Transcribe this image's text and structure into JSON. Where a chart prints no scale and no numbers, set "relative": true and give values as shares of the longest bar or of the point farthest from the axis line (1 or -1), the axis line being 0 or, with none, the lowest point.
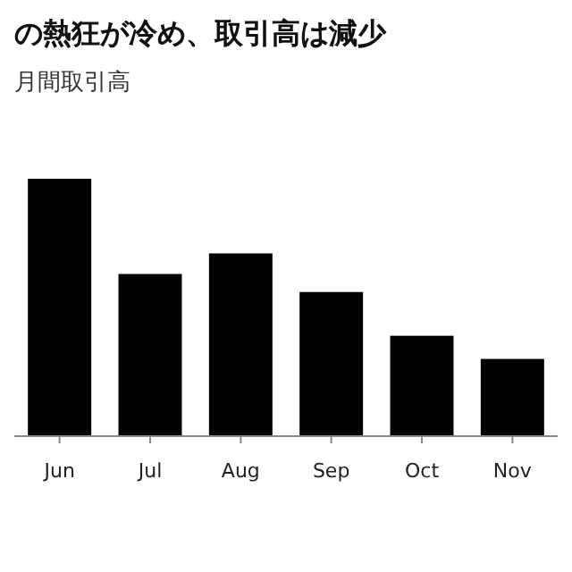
{
  "chart_data": {
    "type": "bar",
    "title": "の熱狂が冷め、取引高は減少",
    "subtitle": "月間取引高",
    "categories": [
      "Jun",
      "Jul",
      "Aug",
      "Sep",
      "Oct",
      "Nov"
    ],
    "values": [
      1,
      0.63,
      0.71,
      0.56,
      0.39,
      0.3
    ],
    "color": "#000000",
    "relative": true
  }
}
